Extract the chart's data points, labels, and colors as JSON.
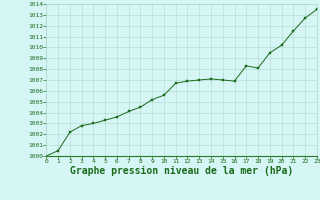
{
  "x": [
    0,
    1,
    2,
    3,
    4,
    5,
    6,
    7,
    8,
    9,
    10,
    11,
    12,
    13,
    14,
    15,
    16,
    17,
    18,
    19,
    20,
    21,
    22,
    23
  ],
  "y": [
    1000.0,
    1000.5,
    1002.2,
    1002.8,
    1003.0,
    1003.3,
    1003.6,
    1004.1,
    1004.5,
    1005.2,
    1005.6,
    1006.7,
    1006.9,
    1007.0,
    1007.1,
    1007.0,
    1006.9,
    1008.3,
    1008.1,
    1009.5,
    1010.2,
    1011.5,
    1012.7,
    1013.5
  ],
  "xlim": [
    0,
    23
  ],
  "ylim": [
    1000,
    1014
  ],
  "yticks": [
    1000,
    1001,
    1002,
    1003,
    1004,
    1005,
    1006,
    1007,
    1008,
    1009,
    1010,
    1011,
    1012,
    1013,
    1014
  ],
  "xticks": [
    0,
    1,
    2,
    3,
    4,
    5,
    6,
    7,
    8,
    9,
    10,
    11,
    12,
    13,
    14,
    15,
    16,
    17,
    18,
    19,
    20,
    21,
    22,
    23
  ],
  "line_color": "#1a6b1a",
  "marker_color": "#1a6b1a",
  "bg_color": "#d6f5f5",
  "grid_color": "#b0d8cc",
  "xlabel": "Graphe pression niveau de la mer (hPa)",
  "xlabel_color": "#1a6b1a",
  "tick_color": "#1a6b1a",
  "tick_fontsize": 4.5,
  "xlabel_fontsize": 7.0,
  "bottom_color": "#2a7a2a"
}
